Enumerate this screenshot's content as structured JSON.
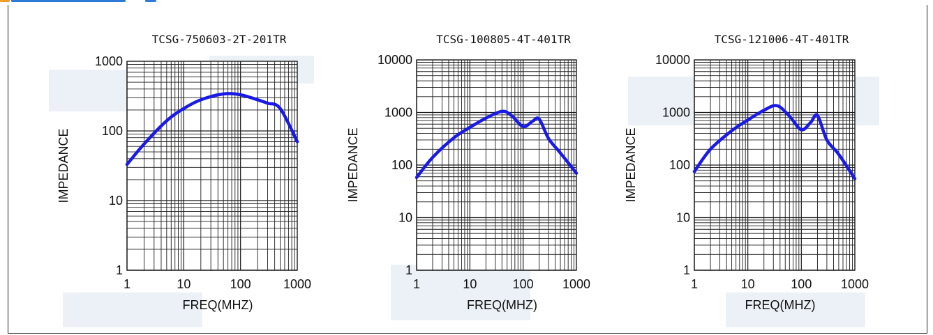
{
  "colors": {
    "curve": "#1a1ae6",
    "grid": "#1a1a1a",
    "watermark": "#dbe5f1",
    "frame": "#222222"
  },
  "chart_data": [
    {
      "type": "line",
      "title": "TCSG-750603-2T-201TR",
      "xlabel": "FREQ(MHZ)",
      "ylabel": "IMPEDANCE",
      "xscale": "log",
      "yscale": "log",
      "xlim": [
        1,
        1000
      ],
      "ylim": [
        1,
        1000
      ],
      "xticks": [
        "1",
        "10",
        "100",
        "1000"
      ],
      "yticks": [
        "1",
        "10",
        "100",
        "1000"
      ],
      "grid": true,
      "series": [
        {
          "x": [
            1,
            2,
            5,
            10,
            20,
            50,
            100,
            200,
            300,
            500,
            1000
          ],
          "y": [
            33,
            65,
            140,
            210,
            280,
            340,
            330,
            280,
            250,
            210,
            70
          ]
        }
      ]
    },
    {
      "type": "line",
      "title": "TCSG-100805-4T-401TR",
      "xlabel": "FREQ(MHZ)",
      "ylabel": "IMPEDANCE",
      "xscale": "log",
      "yscale": "log",
      "xlim": [
        1,
        1000
      ],
      "ylim": [
        1,
        10000
      ],
      "xticks": [
        "1",
        "10",
        "100",
        "1000"
      ],
      "yticks": [
        "1",
        "10",
        "100",
        "1000",
        "10000"
      ],
      "grid": true,
      "series": [
        {
          "x": [
            1,
            2,
            5,
            10,
            20,
            40,
            60,
            100,
            150,
            200,
            300,
            500,
            1000
          ],
          "y": [
            58,
            140,
            330,
            520,
            780,
            1050,
            880,
            540,
            680,
            750,
            320,
            170,
            70
          ]
        }
      ]
    },
    {
      "type": "line",
      "title": "TCSG-121006-4T-401TR",
      "xlabel": "FREQ(MHZ)",
      "ylabel": "IMPEDANCE",
      "xscale": "log",
      "yscale": "log",
      "xlim": [
        1,
        1000
      ],
      "ylim": [
        1,
        10000
      ],
      "xticks": [
        "1",
        "10",
        "100",
        "1000"
      ],
      "yticks": [
        "1",
        "10",
        "100",
        "1000",
        "10000"
      ],
      "grid": true,
      "series": [
        {
          "x": [
            1,
            2,
            5,
            10,
            20,
            35,
            60,
            100,
            150,
            200,
            300,
            500,
            1000
          ],
          "y": [
            75,
            200,
            450,
            720,
            1100,
            1350,
            850,
            470,
            650,
            880,
            300,
            160,
            55
          ]
        }
      ]
    }
  ]
}
